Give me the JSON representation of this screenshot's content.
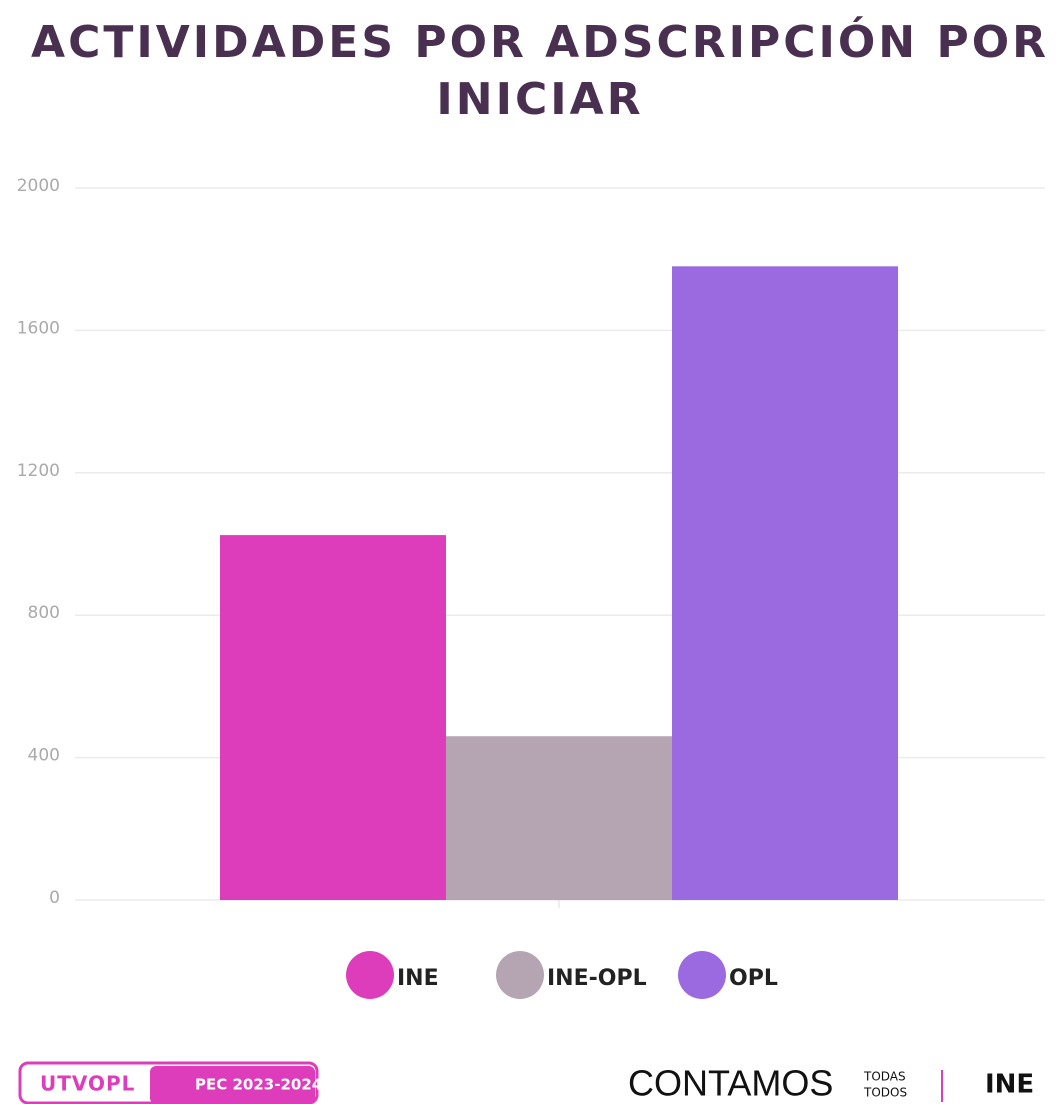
{
  "chart_data": {
    "type": "bar",
    "title": "ACTIVIDADES POR ADSCRIPCIÓN POR INICIAR",
    "categories": [
      null
    ],
    "series": [
      {
        "name": "INE",
        "color": "#dd3cbb",
        "values": [
          1025
        ]
      },
      {
        "name": "INE-OPL",
        "color": "#b5a4b1",
        "values": [
          460
        ]
      },
      {
        "name": "OPL",
        "color": "#9b69e0",
        "values": [
          1780
        ]
      }
    ],
    "ylim": [
      0,
      2000
    ],
    "yticks": [
      0,
      400,
      800,
      1200,
      1600,
      2000
    ],
    "grid": true,
    "legend": "bottom"
  },
  "footer": {
    "badge": "UTVOPL",
    "badge_sub": "PEC 2023-2024",
    "slogan": "CONTAMOS",
    "slogan_top": "TODAS",
    "slogan_bottom": "TODOS",
    "logo": "INE"
  }
}
